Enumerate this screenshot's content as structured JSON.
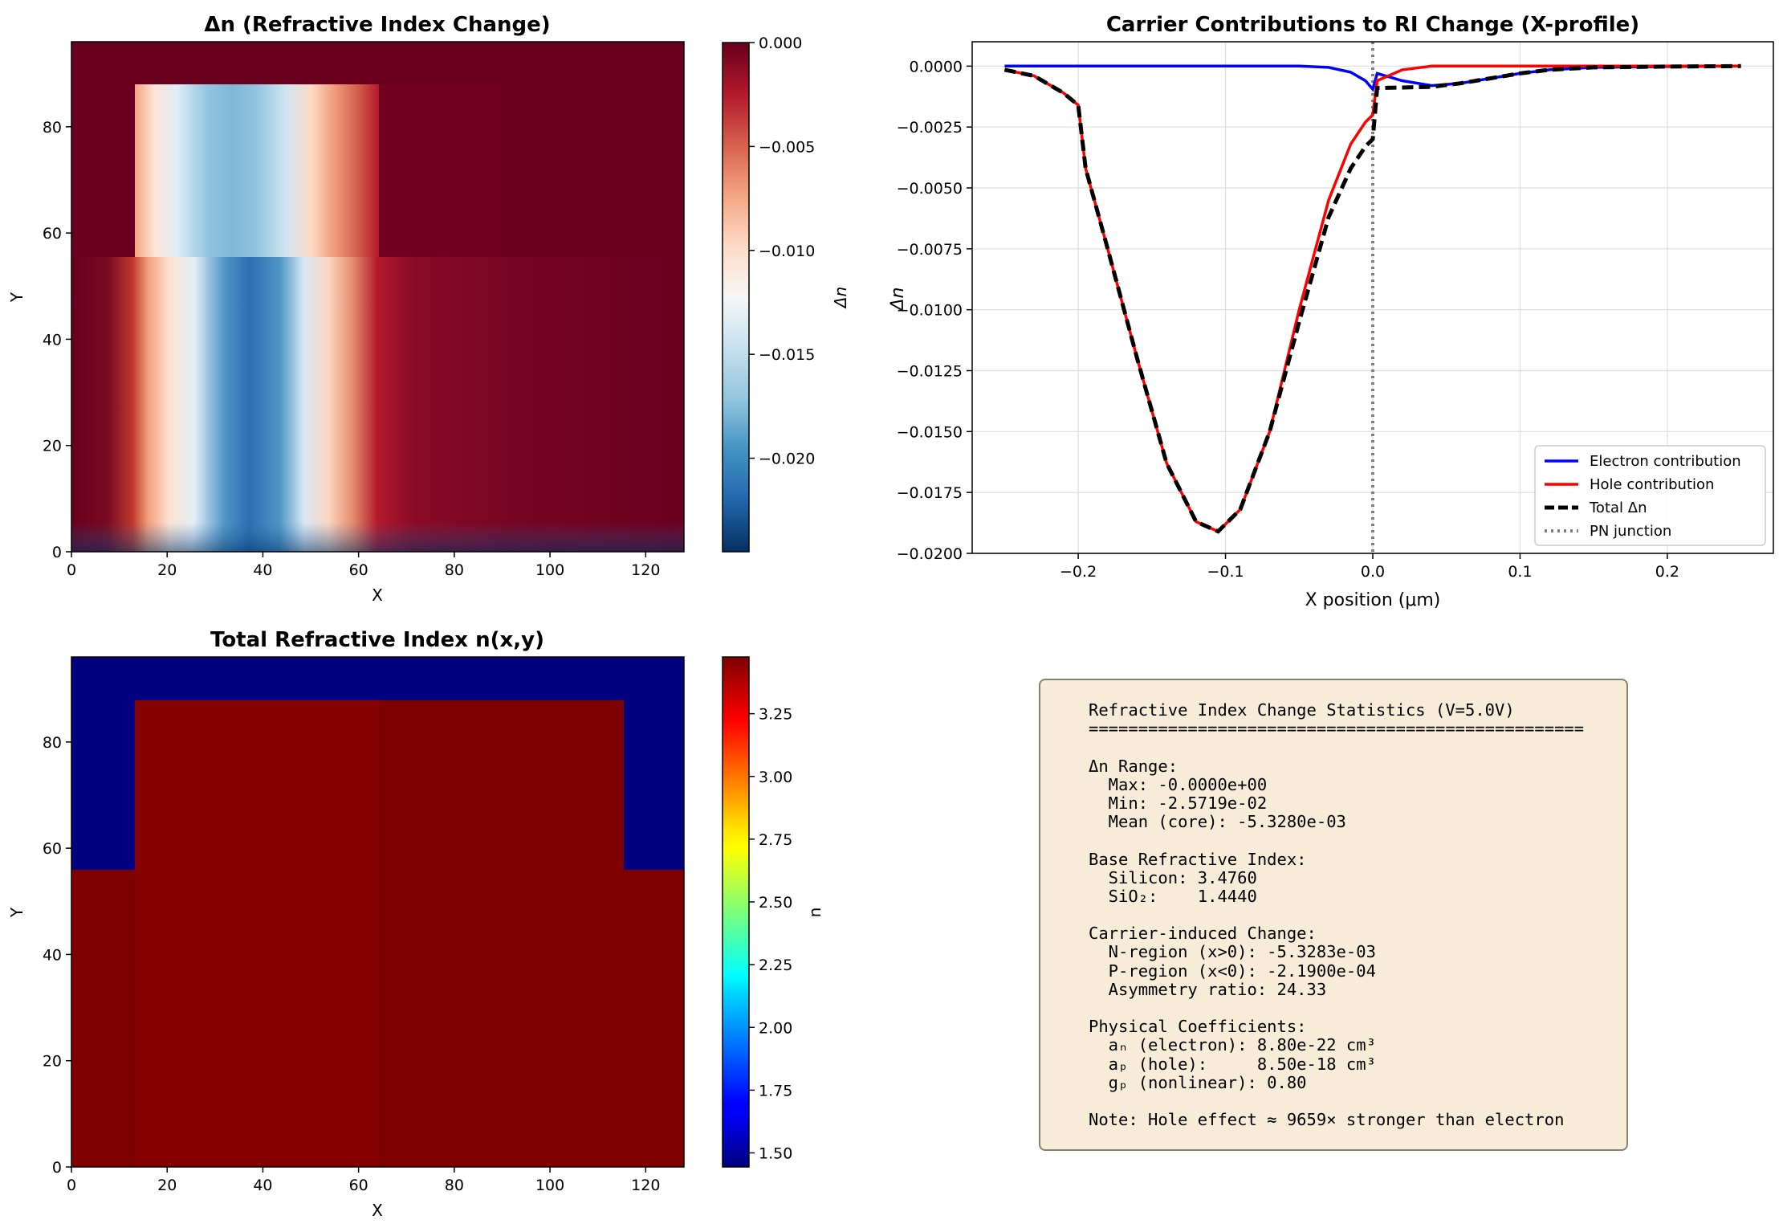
{
  "colors": {
    "electron": "#0000ff",
    "hole": "#ff0000",
    "total": "#000000",
    "junction": "#808080",
    "stats_bg": "#f7ecd8"
  },
  "chart_data": [
    {
      "type": "heatmap",
      "title": "Δn (Refractive Index Change)",
      "xlabel": "X",
      "ylabel": "Y",
      "colorbar_label": "Δn",
      "colormap": "RdBu",
      "xlim": [
        0,
        128
      ],
      "ylim": [
        0,
        96
      ],
      "xticks": [
        "0",
        "20",
        "40",
        "60",
        "80",
        "100",
        "120"
      ],
      "yticks": [
        "0",
        "20",
        "40",
        "60",
        "80"
      ],
      "clim": [
        -0.0245,
        0.0
      ],
      "colorbar_ticks": [
        "0.000",
        "−0.005",
        "−0.010",
        "−0.015",
        "−0.020"
      ],
      "regions": {
        "silicon_slab_y": [
          0,
          55.5
        ],
        "rib_x": [
          13,
          63
        ],
        "rib_y": [
          55.5,
          87.5
        ],
        "rib_full_x": [
          13,
          115
        ],
        "core_center_x": 37,
        "junction_x": 63
      }
    },
    {
      "type": "line",
      "title": "Carrier Contributions to RI Change (X-profile)",
      "xlabel": "X position (μm)",
      "ylabel": "Δn",
      "xlim": [
        -0.272,
        0.272
      ],
      "ylim": [
        -0.02,
        0.001
      ],
      "xticks": [
        "−0.2",
        "−0.1",
        "0.0",
        "0.1",
        "0.2"
      ],
      "yticks": [
        "0.0000",
        "−0.0025",
        "−0.0050",
        "−0.0075",
        "−0.0100",
        "−0.0125",
        "−0.0150",
        "−0.0175",
        "−0.0200"
      ],
      "grid": true,
      "legend_position": "lower-right",
      "x": [
        -0.25,
        -0.23,
        -0.21,
        -0.2,
        -0.195,
        -0.18,
        -0.16,
        -0.14,
        -0.12,
        -0.105,
        -0.09,
        -0.07,
        -0.05,
        -0.03,
        -0.015,
        -0.005,
        0.0,
        0.003,
        0.02,
        0.04,
        0.06,
        0.08,
        0.1,
        0.12,
        0.15,
        0.2,
        0.25
      ],
      "series": [
        {
          "name": "Electron contribution",
          "values": [
            0.0,
            0.0,
            0.0,
            0.0,
            0.0,
            0.0,
            0.0,
            0.0,
            0.0,
            0.0,
            0.0,
            0.0,
            0.0,
            -5e-05,
            -0.00025,
            -0.0006,
            -0.00095,
            -0.0003,
            -0.0006,
            -0.0008,
            -0.0007,
            -0.0005,
            -0.0003,
            -0.00015,
            -5e-05,
            -2e-05,
            0.0
          ]
        },
        {
          "name": "Hole contribution",
          "values": [
            -0.00015,
            -0.0004,
            -0.0011,
            -0.0016,
            -0.0042,
            -0.0075,
            -0.012,
            -0.0163,
            -0.0187,
            -0.0191,
            -0.0182,
            -0.015,
            -0.01,
            -0.0055,
            -0.0032,
            -0.0023,
            -0.002,
            -0.0006,
            -0.00015,
            0.0,
            0.0,
            0.0,
            0.0,
            0.0,
            0.0,
            0.0,
            0.0
          ]
        },
        {
          "name": "Total Δn",
          "values": [
            -0.00015,
            -0.0004,
            -0.0011,
            -0.0016,
            -0.0042,
            -0.0075,
            -0.012,
            -0.0163,
            -0.0187,
            -0.0191,
            -0.0182,
            -0.015,
            -0.0105,
            -0.0062,
            -0.0042,
            -0.0033,
            -0.003,
            -0.0009,
            -0.00088,
            -0.00085,
            -0.0007,
            -0.0005,
            -0.0003,
            -0.00015,
            -5e-05,
            -2e-05,
            0.0
          ]
        }
      ],
      "junction": {
        "name": "PN junction",
        "x": 0.0
      }
    },
    {
      "type": "heatmap",
      "title": "Total Refractive Index n(x,y)",
      "xlabel": "X",
      "ylabel": "Y",
      "colorbar_label": "n",
      "colormap": "jet",
      "xlim": [
        0,
        128
      ],
      "ylim": [
        0,
        96
      ],
      "xticks": [
        "0",
        "20",
        "40",
        "60",
        "80",
        "100",
        "120"
      ],
      "yticks": [
        "0",
        "20",
        "40",
        "60",
        "80"
      ],
      "clim": [
        1.444,
        3.476
      ],
      "colorbar_ticks": [
        "3.25",
        "3.00",
        "2.75",
        "2.50",
        "2.25",
        "2.00",
        "1.75",
        "1.50"
      ]
    }
  ],
  "stats": {
    "lines": [
      "Refractive Index Change Statistics (V=5.0V)",
      "==================================================",
      "",
      "Δn Range:",
      "  Max: -0.0000e+00",
      "  Min: -2.5719e-02",
      "  Mean (core): -5.3280e-03",
      "",
      "Base Refractive Index:",
      "  Silicon: 3.4760",
      "  SiO₂:    1.4440",
      "",
      "Carrier-induced Change:",
      "  N-region (x>0): -5.3283e-03",
      "  P-region (x<0): -2.1900e-04",
      "  Asymmetry ratio: 24.33",
      "",
      "Physical Coefficients:",
      "  aₙ (electron): 8.80e-22 cm³",
      "  aₚ (hole):     8.50e-18 cm³",
      "  gₚ (nonlinear): 0.80",
      "",
      "Note: Hole effect ≈ 9659× stronger than electron"
    ]
  }
}
